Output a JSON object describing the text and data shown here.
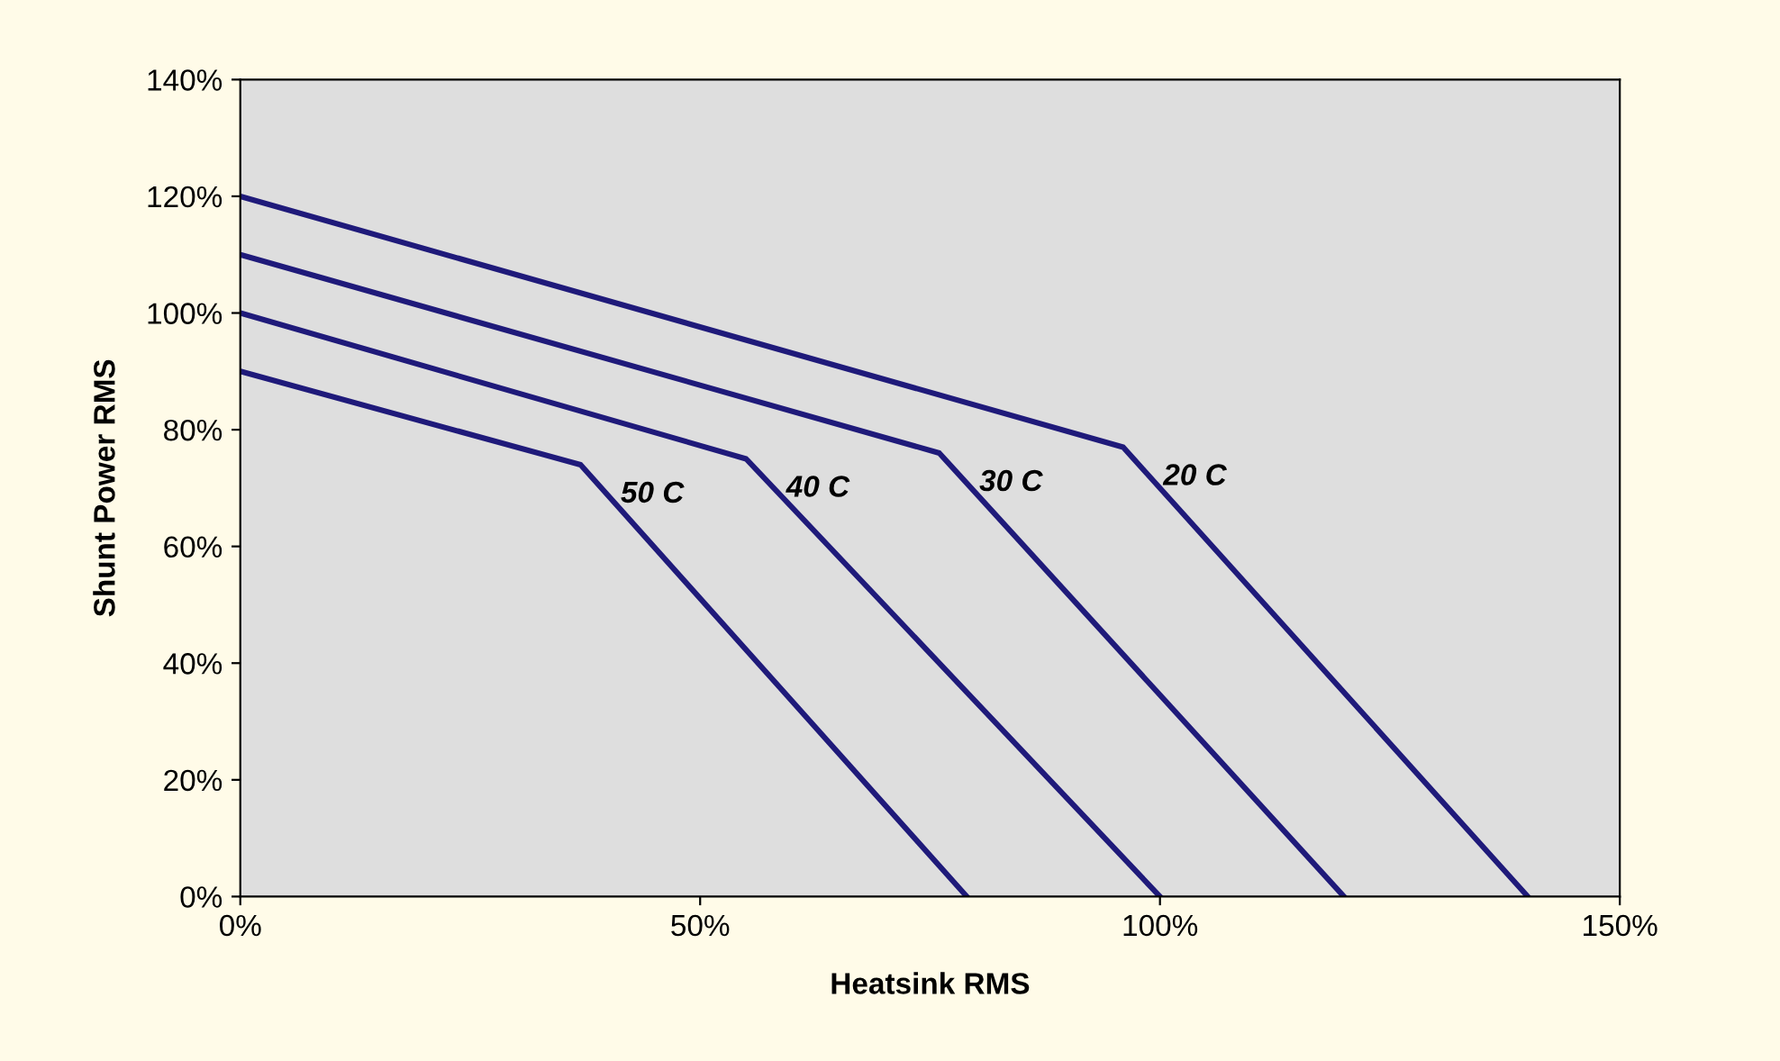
{
  "chart_data": {
    "type": "line",
    "xlabel": "Heatsink RMS",
    "ylabel": "Shunt Power RMS",
    "xlim": [
      0,
      150
    ],
    "xticks": [
      {
        "value": 0,
        "label": "0%"
      },
      {
        "value": 50,
        "label": "50%"
      },
      {
        "value": 100,
        "label": "100%"
      },
      {
        "value": 150,
        "label": "150%"
      }
    ],
    "ylim": [
      0,
      140
    ],
    "yticks": [
      {
        "value": 0,
        "label": "0%"
      },
      {
        "value": 20,
        "label": "20%"
      },
      {
        "value": 40,
        "label": "40%"
      },
      {
        "value": 60,
        "label": "60%"
      },
      {
        "value": 80,
        "label": "80%"
      },
      {
        "value": 100,
        "label": "100%"
      },
      {
        "value": 120,
        "label": "120%"
      },
      {
        "value": 140,
        "label": "140%"
      }
    ],
    "series": [
      {
        "name": "50 C",
        "color": "#1f1a7a",
        "x": [
          0,
          37,
          79
        ],
        "values": [
          90,
          74,
          0
        ]
      },
      {
        "name": "40 C",
        "color": "#1f1a7a",
        "x": [
          0,
          55,
          100
        ],
        "values": [
          100,
          75,
          0
        ]
      },
      {
        "name": "30 C",
        "color": "#1f1a7a",
        "x": [
          0,
          76,
          120
        ],
        "values": [
          110,
          76,
          0
        ]
      },
      {
        "name": "20 C",
        "color": "#1f1a7a",
        "x": [
          0,
          96,
          140
        ],
        "values": [
          120,
          77,
          0
        ]
      }
    ],
    "grid": false,
    "legend": false,
    "marker": "none",
    "line_style": "solid"
  }
}
